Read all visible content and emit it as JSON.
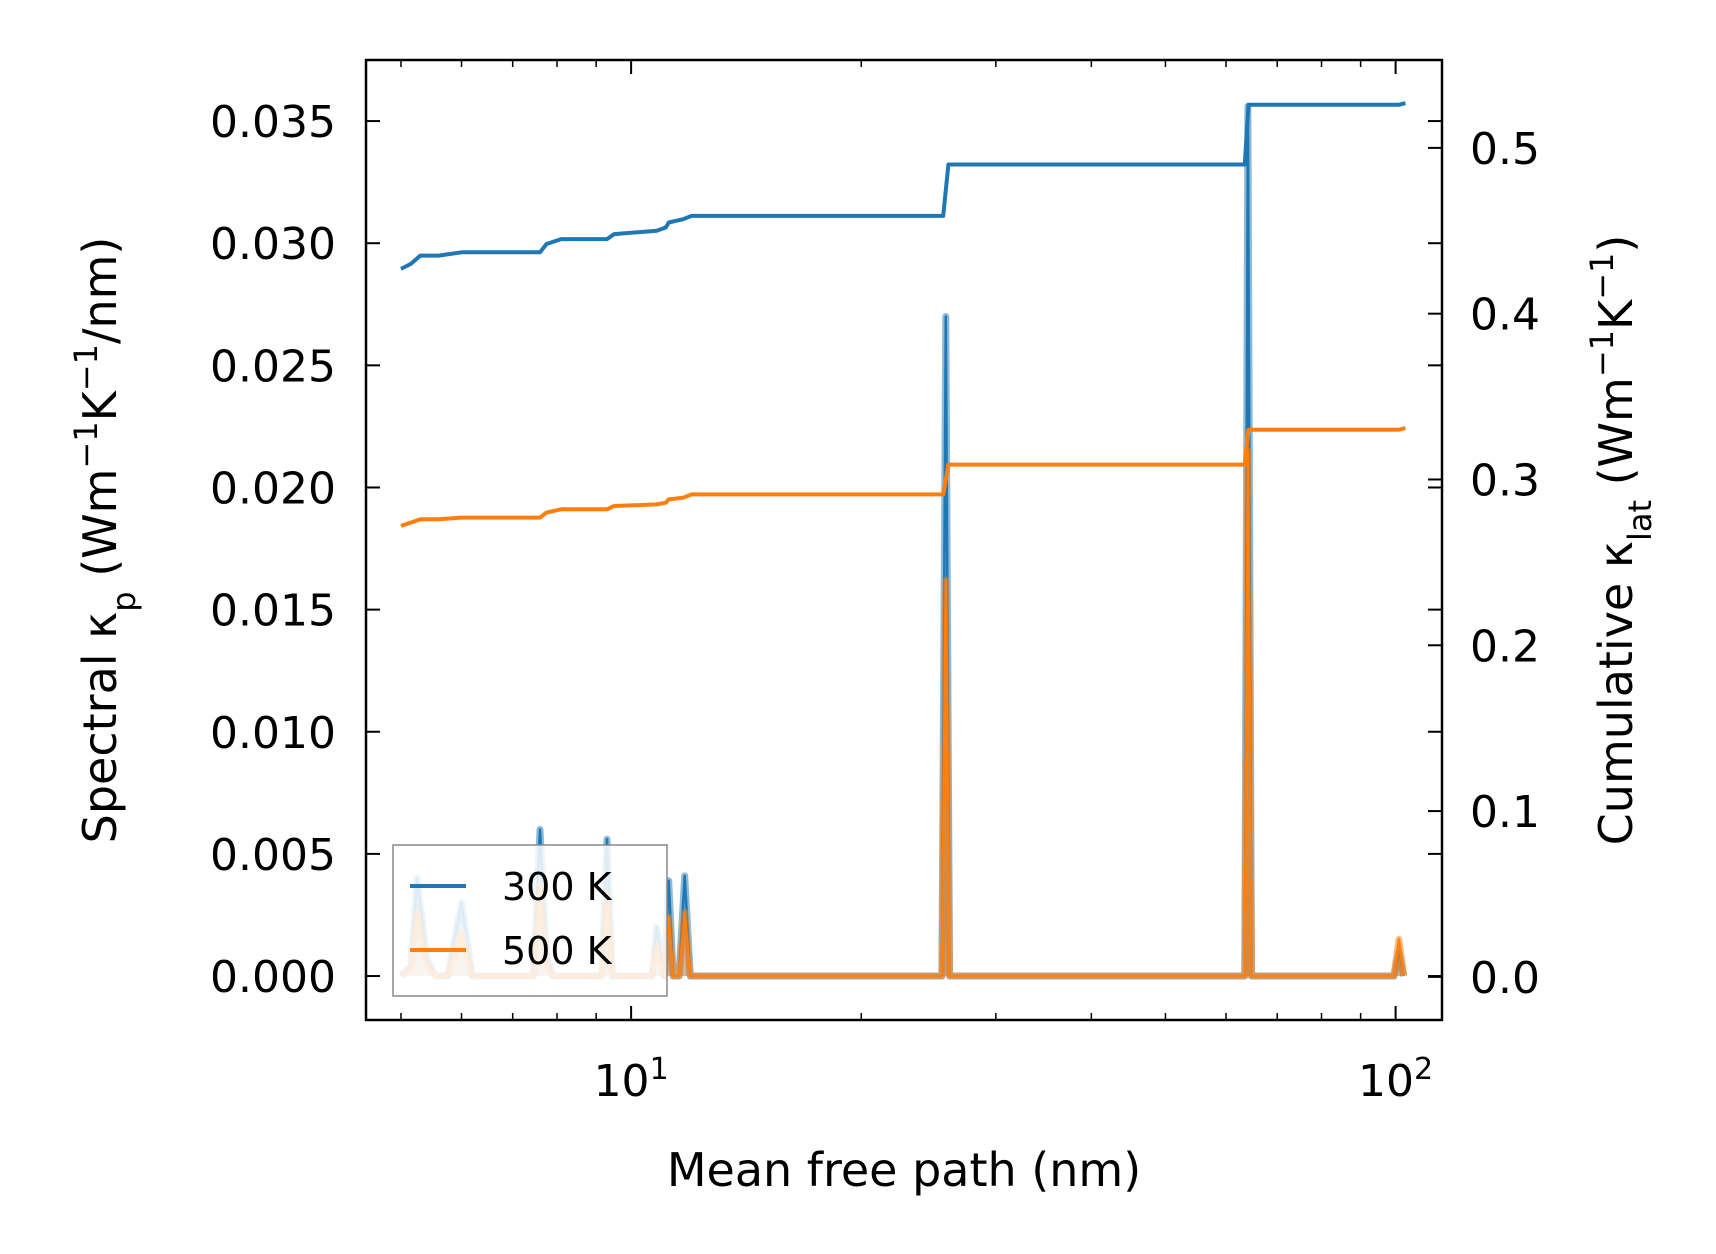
{
  "chart_data": {
    "type": "line",
    "xlabel": "Mean free path (nm)",
    "ylabel_left": {
      "main": "Spectral κ",
      "sub": "p",
      "unit_prefix": " (Wm",
      "sup1": "−1",
      "mid": "K",
      "sup2": "−1",
      "unit_suffix": "/nm)"
    },
    "ylabel_right": {
      "main": "Cumulative κ",
      "sub": "lat",
      "unit_prefix": " (Wm",
      "sup1": "−1",
      "mid": "K",
      "sup2": "−1",
      "unit_suffix": ")"
    },
    "xscale": "log",
    "xlim": [
      4.5,
      115
    ],
    "ylim_left": [
      -0.0018,
      0.0375
    ],
    "ylim_right": [
      -0.026,
      0.553
    ],
    "x_ticks": [
      {
        "value": 10,
        "base": "10",
        "exp": "1"
      },
      {
        "value": 100,
        "base": "10",
        "exp": "2"
      }
    ],
    "y_left_ticks": [
      "0.000",
      "0.005",
      "0.010",
      "0.015",
      "0.020",
      "0.025",
      "0.030",
      "0.035"
    ],
    "y_right_ticks": [
      "0.0",
      "0.1",
      "0.2",
      "0.3",
      "0.4",
      "0.5"
    ],
    "legend": {
      "position": "lower-left",
      "entries": [
        "300 K",
        "500 K"
      ]
    },
    "colors": {
      "300K": "#1f77b4",
      "500K": "#ff7f0e"
    },
    "series": [
      {
        "name": "300 K",
        "axis": "right",
        "kind": "cumulative",
        "x": [
          5.0,
          5.15,
          5.3,
          5.6,
          6.0,
          7.6,
          7.75,
          8.1,
          9.3,
          9.5,
          10.8,
          11.1,
          11.2,
          11.7,
          12.0,
          25.6,
          26.0,
          63.5,
          64.2,
          101,
          103
        ],
        "y": [
          0.427,
          0.43,
          0.435,
          0.435,
          0.437,
          0.437,
          0.442,
          0.445,
          0.445,
          0.448,
          0.45,
          0.452,
          0.455,
          0.457,
          0.459,
          0.459,
          0.49,
          0.49,
          0.526,
          0.526,
          0.527
        ]
      },
      {
        "name": "500 K",
        "axis": "right",
        "kind": "cumulative",
        "x": [
          5.0,
          5.15,
          5.3,
          5.6,
          6.0,
          7.6,
          7.75,
          8.1,
          9.3,
          9.5,
          10.8,
          11.1,
          11.2,
          11.7,
          12.0,
          25.6,
          26.0,
          63.5,
          64.2,
          101,
          103
        ],
        "y": [
          0.272,
          0.274,
          0.276,
          0.276,
          0.277,
          0.277,
          0.28,
          0.282,
          0.282,
          0.284,
          0.285,
          0.286,
          0.288,
          0.289,
          0.291,
          0.291,
          0.309,
          0.309,
          0.33,
          0.33,
          0.331
        ]
      },
      {
        "name": "300 K spectral",
        "axis": "left",
        "kind": "spectral",
        "x": [
          5.0,
          5.15,
          5.25,
          5.4,
          5.55,
          5.75,
          6.0,
          6.2,
          7.45,
          7.6,
          7.75,
          7.9,
          8.1,
          9.15,
          9.3,
          9.45,
          10.65,
          10.8,
          11.05,
          11.2,
          11.35,
          11.55,
          11.75,
          11.95,
          13.0,
          25.5,
          25.8,
          26.1,
          26.5,
          63.5,
          64.1,
          64.8,
          65.5,
          99.5,
          101,
          102.5
        ],
        "y": [
          0.0,
          0.0004,
          0.004,
          0.0008,
          0.0,
          0.0,
          0.003,
          0.0,
          0.0,
          0.006,
          0.0008,
          0.0,
          0.0,
          0.0,
          0.0056,
          0.0,
          0.0,
          0.002,
          0.0,
          0.0039,
          0.0,
          0.0,
          0.0041,
          0.0,
          0.0,
          0.0,
          0.027,
          0.0,
          0.0,
          0.0,
          0.0356,
          0.0,
          0.0,
          0.0,
          0.001,
          0.0
        ]
      },
      {
        "name": "500 K spectral",
        "axis": "left",
        "kind": "spectral",
        "x": [
          5.0,
          5.15,
          5.25,
          5.4,
          5.55,
          5.75,
          6.0,
          6.2,
          7.45,
          7.6,
          7.75,
          7.9,
          8.1,
          9.15,
          9.3,
          9.45,
          10.65,
          10.8,
          11.05,
          11.2,
          11.35,
          11.55,
          11.75,
          11.95,
          13.0,
          25.5,
          25.8,
          26.1,
          26.5,
          63.5,
          64.1,
          64.8,
          65.5,
          99.5,
          101,
          102.5
        ],
        "y": [
          0.0,
          0.0003,
          0.0026,
          0.0005,
          0.0,
          0.0,
          0.0018,
          0.0,
          0.0,
          0.0037,
          0.0005,
          0.0,
          0.0,
          0.0,
          0.0034,
          0.0,
          0.0,
          0.0012,
          0.0,
          0.0024,
          0.0,
          0.0,
          0.0026,
          0.0,
          0.0,
          0.0,
          0.0162,
          0.0,
          0.0,
          0.0,
          0.0215,
          0.0,
          0.0,
          0.0,
          0.0015,
          0.0
        ]
      }
    ]
  }
}
